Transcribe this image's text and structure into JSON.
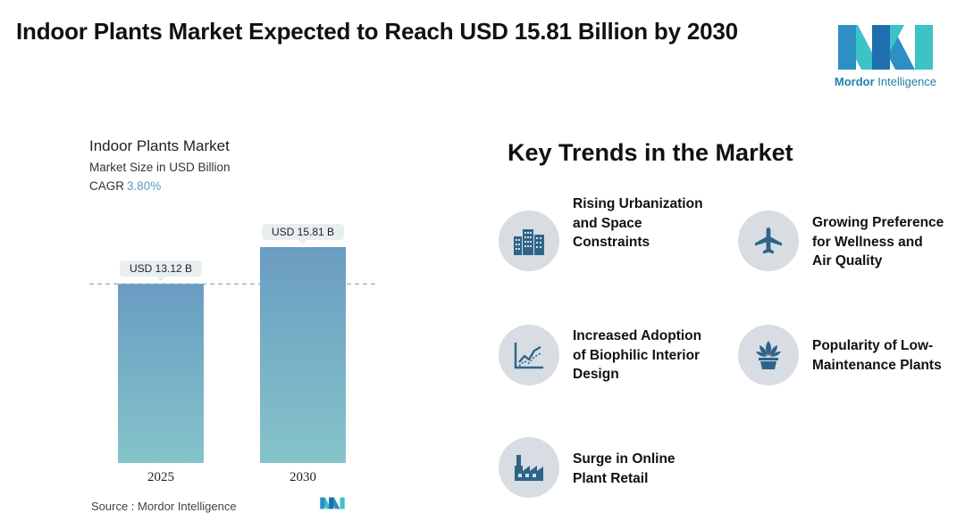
{
  "header": {
    "title": "Indoor Plants Market Expected to Reach USD 15.81 Billion by 2030"
  },
  "logo": {
    "word1": "Mordor",
    "word2": " Intelligence"
  },
  "chart_header": {
    "title": "Indoor Plants Market",
    "subtitle": "Market Size in USD Billion",
    "cagr_label": "CAGR",
    "cagr_value": "3.80%"
  },
  "chart_data": {
    "type": "bar",
    "title": "Indoor Plants Market",
    "ylabel": "Market Size in USD Billion",
    "categories": [
      "2025",
      "2030"
    ],
    "values": [
      13.12,
      15.81
    ],
    "data_labels": [
      "USD 13.12 B",
      "USD 15.81 B"
    ],
    "reference_line_value": 13.12,
    "grid": false,
    "colors": {
      "bar_top": "#6a9cc2",
      "bar_bottom": "#85c4ca",
      "label_bg": "#e9eef1",
      "ref_line": "#7aa7c7"
    }
  },
  "source": {
    "text": "Source :  Mordor Intelligence"
  },
  "trends": {
    "title": "Key Trends in the Market",
    "items": [
      {
        "label_lines": [
          "Rising Urbanization",
          "and Space",
          "Constraints"
        ],
        "icon": "buildings-icon"
      },
      {
        "label_lines": [
          "Growing Preference",
          "for Wellness and",
          "Air Quality"
        ],
        "icon": "airplane-icon"
      },
      {
        "label_lines": [
          "Increased Adoption",
          "of Biophilic Interior",
          "Design"
        ],
        "icon": "line-chart-icon"
      },
      {
        "label_lines": [
          "Popularity of Low-",
          "Maintenance Plants"
        ],
        "icon": "potted-plant-icon"
      },
      {
        "label_lines": [
          "Surge in Online",
          "Plant Retail"
        ],
        "icon": "factory-icon"
      }
    ]
  }
}
